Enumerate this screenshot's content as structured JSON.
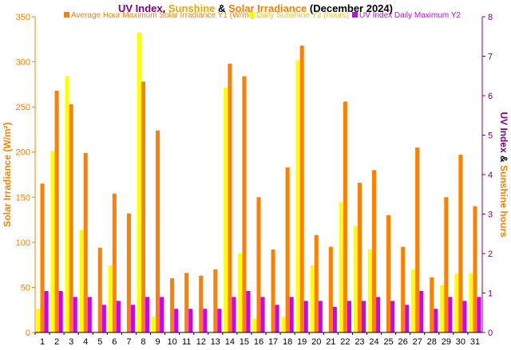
{
  "chart_data": {
    "type": "bar",
    "title_parts": [
      {
        "text": "UV Index",
        "color": "#800080"
      },
      {
        "text": ", ",
        "color": "#000000"
      },
      {
        "text": "Sunshine",
        "color": "#e6a800"
      },
      {
        "text": " & ",
        "color": "#000000"
      },
      {
        "text": "Solar Irradiance",
        "color": "#ff8000"
      },
      {
        "text": " (December 2024)",
        "color": "#000000"
      }
    ],
    "ylabel_left": "Solar Irradiance (W/m²)",
    "ylabel_right_parts": [
      {
        "text": "UV Index",
        "color": "#800080"
      },
      {
        "text": " & ",
        "color": "#000000"
      },
      {
        "text": "Sunshine hours",
        "color": "#ff8000"
      }
    ],
    "categories": [
      "1",
      "2",
      "3",
      "4",
      "5",
      "6",
      "7",
      "8",
      "9",
      "10",
      "11",
      "12",
      "13",
      "14",
      "15",
      "16",
      "17",
      "18",
      "19",
      "20",
      "21",
      "22",
      "23",
      "24",
      "25",
      "26",
      "27",
      "28",
      "29",
      "30",
      "31"
    ],
    "ylim_left": [
      0,
      350
    ],
    "yticks_left": [
      "0",
      "50",
      "100",
      "150",
      "200",
      "250",
      "300",
      "350"
    ],
    "ylim_right": [
      0,
      8
    ],
    "yticks_right": [
      "0",
      "1",
      "2",
      "3",
      "4",
      "5",
      "6",
      "7",
      "8"
    ],
    "legend_position": "top-right",
    "series": [
      {
        "name": "Daily Sunshine Y2 (hours)",
        "color": "#ffff00",
        "axis": "right",
        "values": [
          0.6,
          4.6,
          6.5,
          2.6,
          0,
          1.7,
          0,
          7.6,
          0.4,
          0,
          0,
          0,
          0,
          6.2,
          2.0,
          0.35,
          0,
          0.4,
          6.9,
          1.7,
          0,
          3.3,
          2.7,
          2.1,
          0,
          0,
          1.6,
          0,
          1.2,
          1.5,
          1.5
        ]
      },
      {
        "name": "Average Hour Maximum Solar Irradiance Y1 (W/m²)",
        "color": "#ff8000",
        "axis": "left",
        "values": [
          165,
          268,
          253,
          199,
          94,
          154,
          132,
          278,
          224,
          60,
          66,
          63,
          70,
          298,
          284,
          150,
          92,
          183,
          318,
          108,
          95,
          256,
          166,
          180,
          130,
          95,
          205,
          61,
          150,
          197,
          140
        ]
      },
      {
        "name": "UV Index Daily Maximum Y2",
        "color": "#cc00ff",
        "axis": "right",
        "values": [
          1.05,
          1.05,
          0.9,
          0.9,
          0.7,
          0.8,
          0.7,
          0.9,
          0.9,
          0.6,
          0.6,
          0.6,
          0.6,
          0.9,
          1.05,
          0.9,
          0.7,
          0.9,
          0.8,
          0.8,
          0.65,
          0.8,
          0.8,
          0.9,
          0.8,
          0.7,
          1.05,
          0.6,
          0.9,
          0.8,
          0.9
        ]
      }
    ],
    "legend": [
      {
        "label": "Average Hour Maximum Solar Irradiance Y1 (W/m²)",
        "color": "#ff8000",
        "text_color": "#ff8000"
      },
      {
        "label": "Daily Sunshine Y2 (hours)",
        "color": "#ffff00",
        "text_color": "#e6c800"
      },
      {
        "label": "UV Index Daily Maximum Y2",
        "color": "#cc00ff",
        "text_color": "#cc00ff"
      }
    ],
    "axis_colors": {
      "left": "#ff8000",
      "right": "#800080",
      "bottom": "#000000"
    }
  }
}
